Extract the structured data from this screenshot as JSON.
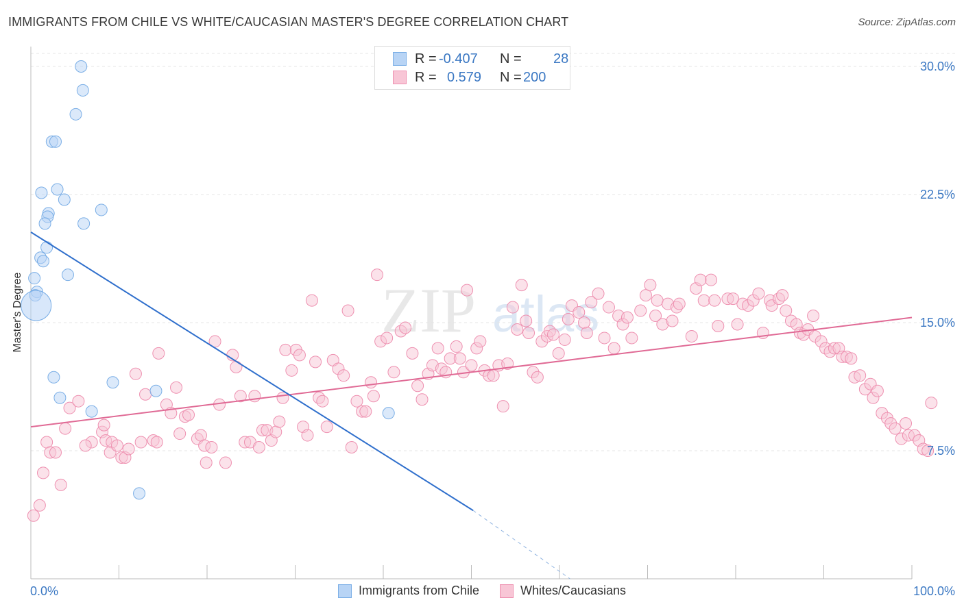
{
  "title": "IMMIGRANTS FROM CHILE VS WHITE/CAUCASIAN MASTER'S DEGREE CORRELATION CHART",
  "source": "Source: ZipAtlas.com",
  "watermark": "ZIPatlas",
  "legend": {
    "series": [
      {
        "name": "Immigrants from Chile",
        "r_label": "R =",
        "r_value": "-0.407",
        "n_label": "N =",
        "n_value": "28",
        "color": "#7aaee6",
        "fill": "#b8d4f5",
        "line": "#2f6fcc"
      },
      {
        "name": "Whites/Caucasians",
        "r_label": "R =",
        "r_value": "0.579",
        "n_label": "N =",
        "n_value": "200",
        "color": "#ee90b0",
        "fill": "#f8c6d6",
        "line": "#e06a95"
      }
    ]
  },
  "chart_data": {
    "type": "scatter",
    "title": "IMMIGRANTS FROM CHILE VS WHITE/CAUCASIAN MASTER'S DEGREE CORRELATION CHART",
    "xlabel": "",
    "ylabel": "Master's Degree",
    "xlim": [
      0,
      100
    ],
    "ylim": [
      0,
      30.8
    ],
    "x_tick_labels": [
      "0.0%",
      "100.0%"
    ],
    "y_ticks": [
      7.5,
      15.0,
      22.5,
      30.0
    ],
    "y_tick_labels": [
      "7.5%",
      "15.0%",
      "22.5%",
      "30.0%"
    ],
    "series": [
      {
        "name": "Immigrants from Chile",
        "points": [
          [
            5.7,
            30.0
          ],
          [
            5.9,
            28.6
          ],
          [
            5.1,
            27.2
          ],
          [
            2.4,
            25.6
          ],
          [
            2.8,
            25.6
          ],
          [
            1.2,
            22.6
          ],
          [
            3.0,
            22.8
          ],
          [
            3.8,
            22.2
          ],
          [
            8.0,
            21.6
          ],
          [
            2.0,
            21.4
          ],
          [
            1.9,
            21.2
          ],
          [
            1.6,
            20.8
          ],
          [
            6.0,
            20.8
          ],
          [
            1.8,
            19.4
          ],
          [
            1.1,
            18.8
          ],
          [
            1.4,
            18.6
          ],
          [
            4.2,
            17.8
          ],
          [
            0.4,
            17.6
          ],
          [
            0.7,
            16.8
          ],
          [
            0.5,
            16.6
          ],
          [
            0.6,
            16.0
          ],
          [
            2.6,
            11.8
          ],
          [
            9.3,
            11.5
          ],
          [
            14.2,
            11.0
          ],
          [
            3.3,
            10.6
          ],
          [
            6.9,
            9.8
          ],
          [
            40.6,
            9.7
          ],
          [
            12.3,
            5.0
          ]
        ],
        "sizes": [
          1,
          1,
          1,
          1,
          1,
          1,
          1,
          1,
          1,
          1,
          1,
          1,
          1,
          1,
          1,
          1,
          1,
          1,
          1,
          1,
          3,
          1,
          1,
          1,
          1,
          1,
          1,
          1
        ],
        "trend": {
          "x0": 0,
          "y0": 20.3,
          "x1": 50.2,
          "y1": 4.0,
          "dash_to_x": 61.2,
          "dash_to_y": 0
        }
      },
      {
        "name": "Whites/Caucasians",
        "points": [
          [
            0.3,
            3.7
          ],
          [
            1.0,
            4.3
          ],
          [
            1.4,
            6.2
          ],
          [
            3.4,
            5.5
          ],
          [
            1.8,
            8.0
          ],
          [
            2.2,
            7.4
          ],
          [
            2.8,
            7.4
          ],
          [
            3.9,
            8.8
          ],
          [
            4.4,
            10.0
          ],
          [
            5.4,
            10.4
          ],
          [
            6.9,
            8.0
          ],
          [
            6.2,
            7.8
          ],
          [
            8.1,
            8.6
          ],
          [
            8.3,
            9.0
          ],
          [
            8.5,
            8.1
          ],
          [
            9.2,
            8.0
          ],
          [
            9.0,
            7.4
          ],
          [
            9.8,
            7.8
          ],
          [
            10.3,
            7.1
          ],
          [
            10.7,
            7.1
          ],
          [
            11.1,
            7.6
          ],
          [
            11.9,
            12.0
          ],
          [
            12.5,
            8.0
          ],
          [
            13.0,
            10.8
          ],
          [
            13.9,
            8.1
          ],
          [
            14.3,
            8.0
          ],
          [
            14.5,
            13.2
          ],
          [
            15.4,
            10.2
          ],
          [
            15.9,
            9.7
          ],
          [
            16.5,
            11.2
          ],
          [
            16.9,
            8.5
          ],
          [
            17.5,
            9.5
          ],
          [
            17.9,
            9.6
          ],
          [
            18.9,
            8.2
          ],
          [
            19.3,
            8.4
          ],
          [
            19.7,
            7.8
          ],
          [
            19.9,
            6.8
          ],
          [
            20.5,
            7.7
          ],
          [
            20.9,
            13.9
          ],
          [
            21.4,
            10.2
          ],
          [
            22.1,
            6.8
          ],
          [
            22.9,
            13.1
          ],
          [
            23.3,
            12.4
          ],
          [
            23.8,
            10.7
          ],
          [
            24.3,
            8.0
          ],
          [
            24.9,
            8.0
          ],
          [
            25.4,
            10.7
          ],
          [
            25.9,
            7.7
          ],
          [
            26.3,
            8.7
          ],
          [
            26.8,
            8.7
          ],
          [
            27.3,
            8.1
          ],
          [
            27.8,
            8.6
          ],
          [
            28.2,
            9.2
          ],
          [
            28.6,
            10.6
          ],
          [
            28.9,
            13.4
          ],
          [
            29.6,
            12.2
          ],
          [
            30.1,
            13.4
          ],
          [
            30.5,
            13.1
          ],
          [
            30.9,
            8.9
          ],
          [
            31.4,
            8.4
          ],
          [
            31.9,
            16.3
          ],
          [
            32.3,
            12.7
          ],
          [
            32.7,
            10.6
          ],
          [
            33.1,
            10.4
          ],
          [
            33.6,
            8.9
          ],
          [
            34.3,
            12.8
          ],
          [
            34.9,
            12.3
          ],
          [
            35.5,
            11.9
          ],
          [
            36.0,
            15.7
          ],
          [
            36.4,
            7.7
          ],
          [
            37.0,
            10.4
          ],
          [
            37.6,
            9.8
          ],
          [
            38.0,
            9.8
          ],
          [
            38.6,
            11.5
          ],
          [
            38.9,
            10.7
          ],
          [
            39.3,
            17.8
          ],
          [
            39.7,
            13.9
          ],
          [
            40.4,
            14.1
          ],
          [
            41.2,
            12.1
          ],
          [
            42.0,
            14.5
          ],
          [
            42.5,
            14.7
          ],
          [
            43.3,
            13.2
          ],
          [
            43.9,
            11.3
          ],
          [
            44.4,
            10.5
          ],
          [
            45.1,
            12.0
          ],
          [
            45.6,
            12.5
          ],
          [
            46.2,
            13.5
          ],
          [
            46.6,
            12.3
          ],
          [
            47.1,
            12.1
          ],
          [
            47.6,
            12.9
          ],
          [
            48.3,
            13.6
          ],
          [
            48.7,
            12.9
          ],
          [
            49.1,
            12.1
          ],
          [
            49.5,
            16.9
          ],
          [
            50.0,
            12.5
          ],
          [
            50.6,
            13.5
          ],
          [
            51.0,
            13.9
          ],
          [
            51.5,
            12.2
          ],
          [
            52.0,
            11.9
          ],
          [
            52.5,
            11.9
          ],
          [
            53.1,
            12.5
          ],
          [
            53.6,
            10.1
          ],
          [
            54.1,
            12.6
          ],
          [
            54.7,
            15.9
          ],
          [
            55.2,
            14.6
          ],
          [
            55.7,
            17.2
          ],
          [
            56.2,
            15.1
          ],
          [
            56.5,
            14.4
          ],
          [
            57.0,
            12.1
          ],
          [
            57.5,
            11.8
          ],
          [
            58.0,
            13.9
          ],
          [
            58.6,
            14.2
          ],
          [
            58.9,
            14.5
          ],
          [
            59.3,
            14.3
          ],
          [
            59.9,
            13.2
          ],
          [
            60.6,
            14.0
          ],
          [
            61.0,
            15.2
          ],
          [
            61.4,
            16.0
          ],
          [
            62.2,
            15.6
          ],
          [
            62.8,
            15.0
          ],
          [
            63.1,
            14.4
          ],
          [
            63.6,
            16.2
          ],
          [
            64.4,
            16.7
          ],
          [
            65.1,
            14.1
          ],
          [
            65.6,
            15.9
          ],
          [
            66.2,
            13.5
          ],
          [
            66.7,
            15.4
          ],
          [
            67.2,
            14.9
          ],
          [
            67.7,
            15.3
          ],
          [
            68.2,
            14.1
          ],
          [
            69.2,
            15.7
          ],
          [
            69.8,
            16.6
          ],
          [
            70.3,
            17.2
          ],
          [
            70.9,
            15.4
          ],
          [
            71.1,
            16.3
          ],
          [
            71.7,
            14.9
          ],
          [
            72.3,
            16.1
          ],
          [
            72.8,
            15.1
          ],
          [
            73.3,
            15.9
          ],
          [
            73.6,
            16.1
          ],
          [
            75.0,
            14.2
          ],
          [
            75.5,
            17.0
          ],
          [
            76.0,
            17.5
          ],
          [
            76.4,
            16.3
          ],
          [
            77.2,
            17.5
          ],
          [
            77.6,
            16.3
          ],
          [
            78.0,
            14.8
          ],
          [
            79.1,
            16.4
          ],
          [
            79.7,
            16.4
          ],
          [
            80.2,
            14.9
          ],
          [
            80.8,
            16.1
          ],
          [
            81.4,
            16.0
          ],
          [
            82.0,
            16.3
          ],
          [
            82.6,
            16.7
          ],
          [
            83.1,
            14.4
          ],
          [
            83.9,
            16.3
          ],
          [
            84.1,
            16.0
          ],
          [
            84.9,
            16.4
          ],
          [
            85.3,
            16.6
          ],
          [
            85.7,
            15.7
          ],
          [
            86.3,
            15.1
          ],
          [
            86.9,
            14.9
          ],
          [
            87.3,
            14.4
          ],
          [
            87.7,
            14.3
          ],
          [
            88.2,
            14.6
          ],
          [
            88.8,
            15.4
          ],
          [
            89.0,
            14.2
          ],
          [
            89.7,
            13.9
          ],
          [
            90.2,
            13.5
          ],
          [
            90.7,
            13.3
          ],
          [
            91.2,
            13.5
          ],
          [
            91.7,
            13.5
          ],
          [
            92.1,
            13.0
          ],
          [
            92.6,
            13.0
          ],
          [
            93.1,
            12.9
          ],
          [
            93.5,
            11.8
          ],
          [
            94.1,
            11.9
          ],
          [
            94.7,
            11.1
          ],
          [
            95.3,
            11.4
          ],
          [
            95.6,
            10.6
          ],
          [
            96.1,
            11.0
          ],
          [
            96.6,
            9.7
          ],
          [
            97.2,
            9.4
          ],
          [
            97.6,
            9.1
          ],
          [
            98.1,
            8.8
          ],
          [
            98.8,
            8.2
          ],
          [
            99.3,
            9.1
          ],
          [
            99.6,
            8.4
          ],
          [
            100.3,
            8.4
          ],
          [
            100.8,
            8.1
          ],
          [
            101.3,
            7.6
          ],
          [
            101.8,
            7.5
          ],
          [
            102.2,
            10.3
          ]
        ],
        "trend": {
          "x0": 0,
          "y0": 8.9,
          "x1": 100,
          "y1": 15.3
        }
      }
    ]
  }
}
